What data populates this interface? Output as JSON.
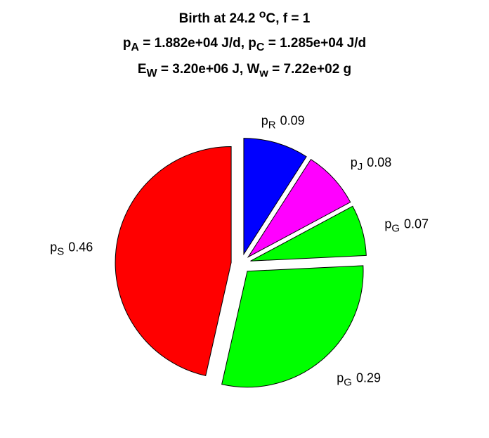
{
  "chart_data": {
    "type": "pie",
    "title": [
      [
        {
          "text": "Birth at 24.2 "
        },
        {
          "text": "o",
          "shift": "super"
        },
        {
          "text": "C, f = 1"
        }
      ],
      [
        {
          "text": "p"
        },
        {
          "text": "A",
          "shift": "sub"
        },
        {
          "text": " = 1.882e+04 J/d, p"
        },
        {
          "text": "C",
          "shift": "sub"
        },
        {
          "text": " = 1.285e+04 J/d"
        }
      ],
      [
        {
          "text": "E"
        },
        {
          "text": "W",
          "shift": "sub"
        },
        {
          "text": " = 3.20e+06 J, W"
        },
        {
          "text": "w",
          "shift": "sub"
        },
        {
          "text": " = 7.22e+02 g"
        }
      ]
    ],
    "categories": [
      [
        {
          "text": "p"
        },
        {
          "text": "R",
          "shift": "sub"
        }
      ],
      [
        {
          "text": "p"
        },
        {
          "text": "J",
          "shift": "sub"
        }
      ],
      [
        {
          "text": "p"
        },
        {
          "text": "G",
          "shift": "sub"
        }
      ],
      [
        {
          "text": "p"
        },
        {
          "text": "G",
          "shift": "sub"
        }
      ],
      [
        {
          "text": "p"
        },
        {
          "text": "S",
          "shift": "sub"
        }
      ]
    ],
    "values": [
      0.09,
      0.08,
      0.07,
      0.29,
      0.46
    ],
    "colors": [
      "#0000ff",
      "#ff00ff",
      "#00ff00",
      "#00ff00",
      "#ff0000"
    ],
    "exploded": true
  }
}
